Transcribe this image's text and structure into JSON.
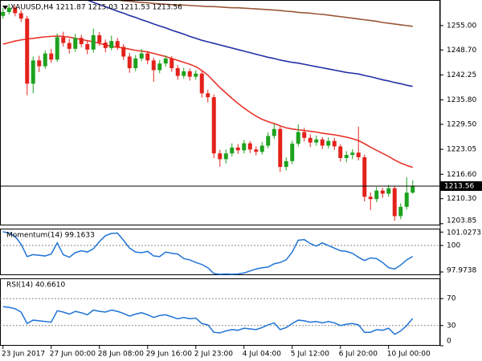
{
  "chart_data": [
    {
      "type": "candlestick",
      "title": "XAUUSD,H4  1211.87 1215.03 1211.53 1213.56",
      "categories": [
        "23 Jun 2017",
        null,
        null,
        null,
        null,
        null,
        null,
        null,
        "27 Jun 00:00",
        null,
        null,
        null,
        null,
        null,
        null,
        null,
        "28 Jun 08:00",
        null,
        null,
        null,
        null,
        null,
        null,
        null,
        "29 Jun 16:00",
        null,
        null,
        null,
        null,
        null,
        null,
        null,
        "2 Jul 23:00",
        null,
        null,
        null,
        null,
        null,
        null,
        null,
        "4 Jul 04:00",
        null,
        null,
        null,
        null,
        null,
        null,
        null,
        "5 Jul 12:00",
        null,
        null,
        null,
        null,
        null,
        null,
        null,
        "6 Jul 20:00",
        null,
        null,
        null,
        null,
        null,
        null,
        null,
        "10 Jul 00:00",
        null,
        null,
        null,
        null
      ],
      "open": [
        1257.5,
        1258.5,
        1259.6,
        1258.2,
        1256.8,
        1240.0,
        1246.0,
        1244.5,
        1247.8,
        1246.2,
        1252.0,
        1250.5,
        1249.0,
        1251.8,
        1250.2,
        1248.8,
        1252.5,
        1250.6,
        1249.2,
        1251.0,
        1249.5,
        1247.0,
        1244.0,
        1246.5,
        1247.8,
        1246.0,
        1243.5,
        1245.2,
        1246.5,
        1244.0,
        1242.0,
        1243.2,
        1241.8,
        1242.6,
        1237.5,
        1236.5,
        1222.0,
        1220.5,
        1222.0,
        1223.5,
        1222.8,
        1224.6,
        1223.0,
        1222.4,
        1224.0,
        1226.5,
        1228.3,
        1218.5,
        1220.0,
        1224.5,
        1227.5,
        1226.0,
        1224.8,
        1225.6,
        1224.0,
        1225.2,
        1223.8,
        1220.8,
        1221.6,
        1222.2,
        1221.0,
        1210.8,
        1210.2,
        1212.4,
        1211.6,
        1213.0,
        1205.8,
        1208.2,
        1211.87
      ],
      "high": [
        1259.5,
        1260.6,
        1260.2,
        1259.0,
        1257.5,
        1247.0,
        1247.2,
        1248.6,
        1249.0,
        1253.0,
        1253.4,
        1251.6,
        1252.9,
        1252.6,
        1251.0,
        1254.2,
        1253.3,
        1251.4,
        1252.4,
        1251.8,
        1250.2,
        1247.9,
        1247.4,
        1249.0,
        1248.4,
        1246.7,
        1246.1,
        1247.3,
        1247.1,
        1244.8,
        1244.1,
        1243.9,
        1243.5,
        1243.2,
        1238.4,
        1237.2,
        1222.9,
        1223.0,
        1224.6,
        1224.4,
        1225.5,
        1225.2,
        1223.8,
        1224.9,
        1227.4,
        1229.6,
        1228.9,
        1221.0,
        1225.3,
        1229.5,
        1228.6,
        1226.9,
        1226.6,
        1226.2,
        1226.1,
        1226.0,
        1224.4,
        1222.6,
        1223.1,
        1228.9,
        1221.7,
        1211.9,
        1213.3,
        1213.1,
        1213.9,
        1213.6,
        1209.1,
        1215.8,
        1215.03
      ],
      "low": [
        1256.8,
        1257.9,
        1257.4,
        1255.9,
        1237.0,
        1237.5,
        1243.0,
        1243.8,
        1245.4,
        1245.6,
        1249.6,
        1247.8,
        1248.2,
        1249.4,
        1247.6,
        1248.0,
        1249.8,
        1248.1,
        1248.6,
        1248.7,
        1246.1,
        1242.8,
        1243.2,
        1245.8,
        1245.0,
        1240.5,
        1242.7,
        1244.4,
        1243.1,
        1241.0,
        1241.3,
        1240.8,
        1241.0,
        1236.4,
        1235.2,
        1220.8,
        1218.6,
        1219.4,
        1221.2,
        1221.9,
        1222.0,
        1222.1,
        1221.5,
        1221.7,
        1223.3,
        1225.7,
        1217.2,
        1217.6,
        1219.2,
        1223.8,
        1225.1,
        1223.6,
        1224.0,
        1223.1,
        1223.3,
        1222.9,
        1219.9,
        1219.7,
        1220.5,
        1220.2,
        1209.6,
        1207.4,
        1209.4,
        1210.5,
        1210.8,
        1204.6,
        1205.0,
        1207.5,
        1211.53
      ],
      "close": [
        1258.5,
        1259.6,
        1258.2,
        1256.8,
        1240.0,
        1246.0,
        1244.5,
        1247.8,
        1246.2,
        1252.0,
        1250.5,
        1249.0,
        1251.8,
        1250.2,
        1248.8,
        1252.5,
        1250.6,
        1249.2,
        1251.0,
        1249.5,
        1247.0,
        1244.0,
        1246.5,
        1247.8,
        1246.0,
        1243.5,
        1245.2,
        1246.5,
        1244.0,
        1242.0,
        1243.2,
        1241.8,
        1242.6,
        1237.5,
        1236.5,
        1222.0,
        1220.5,
        1222.0,
        1223.5,
        1222.8,
        1224.6,
        1223.0,
        1222.4,
        1224.0,
        1226.5,
        1228.3,
        1218.5,
        1220.0,
        1224.5,
        1227.5,
        1226.0,
        1224.8,
        1225.6,
        1224.0,
        1225.2,
        1223.8,
        1220.8,
        1221.6,
        1222.2,
        1221.0,
        1210.8,
        1210.2,
        1212.4,
        1211.6,
        1213.0,
        1205.8,
        1208.2,
        1211.87,
        1213.56
      ],
      "up_color": "#1ea21e",
      "down_color": "#e3221b",
      "lines": [
        {
          "color": "#e8342a",
          "values": [
            1250.2,
            1250.6,
            1251.0,
            1251.3,
            1251.5,
            1251.7,
            1251.9,
            1252.1,
            1252.2,
            1252.3,
            1252.2,
            1252.0,
            1251.7,
            1251.4,
            1251.1,
            1250.8,
            1250.4,
            1250.0,
            1249.6,
            1249.4,
            1249.2,
            1248.9,
            1248.6,
            1248.4,
            1248.2,
            1247.8,
            1247.4,
            1247.0,
            1246.5,
            1246.0,
            1245.5,
            1245.0,
            1244.4,
            1243.4,
            1242.2,
            1240.6,
            1239.0,
            1237.6,
            1236.2,
            1234.9,
            1233.7,
            1232.6,
            1231.6,
            1230.8,
            1230.2,
            1229.7,
            1229.1,
            1228.6,
            1228.3,
            1228.1,
            1227.9,
            1227.7,
            1227.5,
            1227.2,
            1227.0,
            1226.8,
            1226.5,
            1226.2,
            1225.8,
            1225.3,
            1224.5,
            1223.6,
            1222.8,
            1222.0,
            1221.2,
            1220.3,
            1219.5,
            1218.9,
            1218.4
          ]
        },
        {
          "color": "#2330a8",
          "values": [
            null,
            null,
            null,
            null,
            null,
            null,
            null,
            null,
            null,
            null,
            null,
            null,
            null,
            1262.2,
            1261.6,
            1261.0,
            1260.4,
            1259.9,
            1259.3,
            1258.7,
            1258.2,
            1257.6,
            1257.1,
            1256.5,
            1256.0,
            1255.4,
            1254.9,
            1254.4,
            1253.8,
            1253.3,
            1252.8,
            1252.2,
            1251.7,
            1251.2,
            1250.8,
            1250.4,
            1250.0,
            1249.6,
            1249.2,
            1248.8,
            1248.4,
            1248.0,
            1247.6,
            1247.2,
            1246.8,
            1246.5,
            1246.1,
            1245.8,
            1245.5,
            1245.3,
            1245.0,
            1244.7,
            1244.4,
            1244.1,
            1243.8,
            1243.5,
            1243.2,
            1242.9,
            1242.7,
            1242.5,
            1242.1,
            1241.8,
            1241.4,
            1241.0,
            1240.7,
            1240.3,
            1240.0,
            1239.6,
            1239.3
          ]
        },
        {
          "color": "#9a5636",
          "values": [
            null,
            null,
            null,
            null,
            null,
            null,
            null,
            null,
            null,
            null,
            null,
            null,
            null,
            null,
            null,
            null,
            null,
            null,
            1261.8,
            1261.6,
            1261.4,
            1261.3,
            1261.1,
            1261.0,
            1260.9,
            1260.7,
            1260.6,
            1260.5,
            1260.4,
            1260.3,
            1260.3,
            1260.2,
            1260.1,
            1260.0,
            1259.9,
            1259.9,
            1259.8,
            1259.7,
            1259.6,
            1259.6,
            1259.5,
            1259.4,
            1259.3,
            1259.2,
            1259.1,
            1259.0,
            1258.9,
            1258.7,
            1258.6,
            1258.4,
            1258.3,
            1258.2,
            1258.0,
            1257.9,
            1257.7,
            1257.5,
            1257.3,
            1257.1,
            1256.9,
            1256.7,
            1256.5,
            1256.3,
            1256.1,
            1255.8,
            1255.6,
            1255.4,
            1255.2,
            1255.0,
            1254.8
          ]
        }
      ],
      "current_price": {
        "value": 1213.56,
        "label": "1213.56"
      },
      "ylim": [
        1203.4,
        1261.6
      ],
      "yticks": [
        {
          "value": 1255,
          "label": "1255.00"
        },
        {
          "value": 1248.7,
          "label": "1248.70"
        },
        {
          "value": 1242.25,
          "label": "1242.25"
        },
        {
          "value": 1235.8,
          "label": "1235.80"
        },
        {
          "value": 1229.5,
          "label": "1229.50"
        },
        {
          "value": 1223.05,
          "label": "1223.05"
        },
        {
          "value": 1216.6,
          "label": "1216.60"
        },
        {
          "value": 1210.3,
          "label": "1210.30"
        },
        {
          "value": 1203.85,
          "label": "1203.85"
        }
      ]
    },
    {
      "type": "line",
      "title": "Momentum(14) 99.1633",
      "color": "#1f74d6",
      "values": [
        101.05,
        100.95,
        100.7,
        100.1,
        99.15,
        99.3,
        99.25,
        99.2,
        99.35,
        100.2,
        99.3,
        99.1,
        99.45,
        99.6,
        99.5,
        99.75,
        100.3,
        100.75,
        100.92,
        100.95,
        100.4,
        99.8,
        99.5,
        99.45,
        99.55,
        99.2,
        99.15,
        99.5,
        99.4,
        99.35,
        99.0,
        98.9,
        98.7,
        98.55,
        98.3,
        97.85,
        97.8,
        97.82,
        97.8,
        97.82,
        97.9,
        98.05,
        98.2,
        98.3,
        98.35,
        98.6,
        98.7,
        98.9,
        99.5,
        100.4,
        100.45,
        100.15,
        99.95,
        100.2,
        100.0,
        99.8,
        99.6,
        99.55,
        99.4,
        99.1,
        98.85,
        99.05,
        99.0,
        98.7,
        98.3,
        98.2,
        98.5,
        98.9,
        99.1633
      ],
      "ylim": [
        97.73,
        101.29
      ],
      "yticks": [
        101.0273,
        100,
        97.9738
      ],
      "levels": [
        100
      ]
    },
    {
      "type": "line",
      "title": "RSI(14) 40.6610",
      "color": "#1f74d6",
      "values": [
        58,
        57,
        55,
        50,
        33,
        38,
        37,
        36,
        35,
        52,
        50,
        47,
        51,
        49,
        46,
        53,
        51,
        50,
        53,
        51,
        48,
        44,
        47,
        49,
        46,
        42,
        45,
        46,
        43,
        40,
        42,
        40,
        41,
        33,
        31,
        20,
        19,
        22,
        24,
        23,
        26,
        25,
        24,
        27,
        31,
        34,
        24,
        27,
        33,
        38,
        37,
        35,
        36,
        34,
        36,
        34,
        30,
        32,
        33,
        31,
        20,
        20,
        24,
        23,
        26,
        17,
        22,
        30,
        40.661
      ],
      "ylim": [
        0,
        100
      ],
      "yticks": [
        70,
        30,
        0
      ],
      "levels": [
        70,
        30
      ]
    }
  ]
}
